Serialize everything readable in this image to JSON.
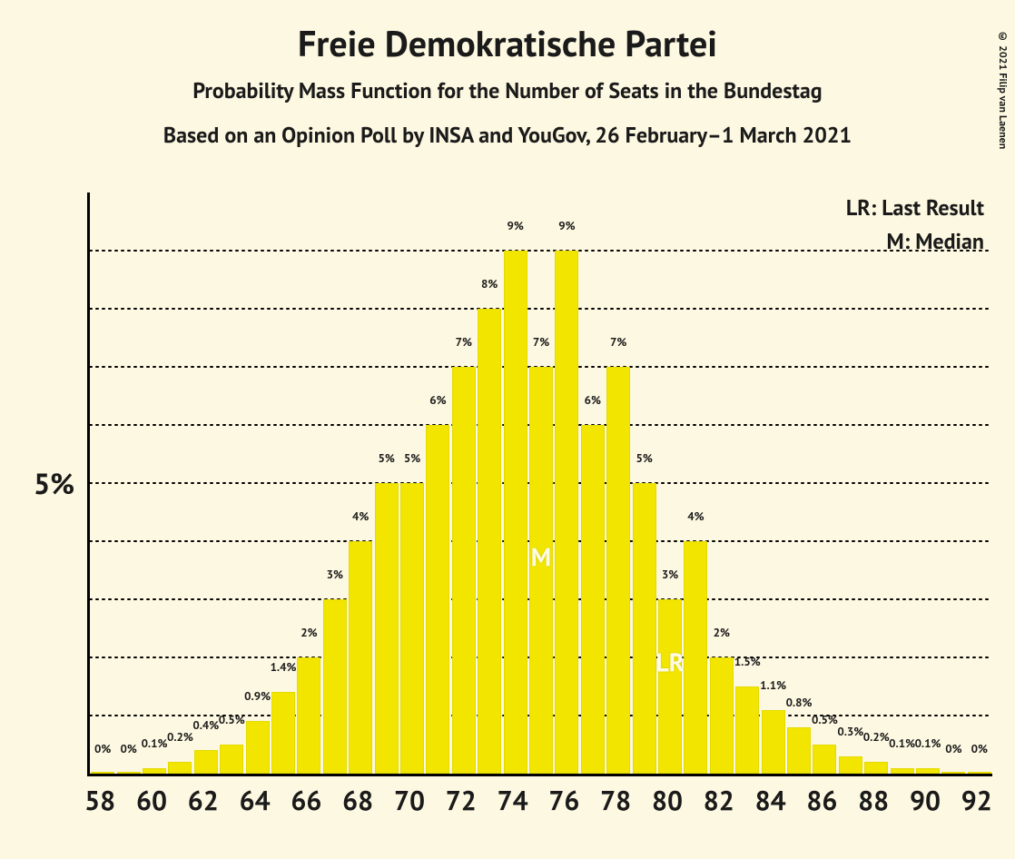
{
  "copyright": "© 2021 Filip van Laenen",
  "title": "Freie Demokratische Partei",
  "subtitle": "Probability Mass Function for the Number of Seats in the Bundestag",
  "subtitle2": "Based on an Opinion Poll by INSA and YouGov, 26 February–1 March 2021",
  "legend": {
    "lr": "LR: Last Result",
    "m": "M: Median"
  },
  "colors": {
    "background": "#fdf8e1",
    "bar": "#f2e600",
    "axis": "#000000",
    "text": "#1a1a1a",
    "marker_text": "#fffbe6"
  },
  "chart": {
    "type": "bar",
    "x_start": 58,
    "x_end": 92,
    "x_tick_labels": [
      58,
      60,
      62,
      64,
      66,
      68,
      70,
      72,
      74,
      76,
      78,
      80,
      82,
      84,
      86,
      88,
      90,
      92
    ],
    "ylim": [
      0,
      10
    ],
    "y_major_tick": 5,
    "y_tick_label": "5%",
    "gridline_style": "dotted",
    "bar_gap_ratio": 0.08,
    "title_fontsize": 40,
    "subtitle_fontsize": 24,
    "axis_label_fontsize": 30,
    "bar_label_fontsize": 13,
    "median_seat": 75,
    "last_result_seat": 80,
    "median_label": "M",
    "last_result_label": "LR",
    "bars": [
      {
        "x": 58,
        "pct": 0,
        "label": "0%"
      },
      {
        "x": 59,
        "pct": 0,
        "label": "0%"
      },
      {
        "x": 60,
        "pct": 0.1,
        "label": "0.1%"
      },
      {
        "x": 61,
        "pct": 0.2,
        "label": "0.2%"
      },
      {
        "x": 62,
        "pct": 0.4,
        "label": "0.4%"
      },
      {
        "x": 63,
        "pct": 0.5,
        "label": "0.5%"
      },
      {
        "x": 64,
        "pct": 0.9,
        "label": "0.9%"
      },
      {
        "x": 65,
        "pct": 1.4,
        "label": "1.4%"
      },
      {
        "x": 66,
        "pct": 2,
        "label": "2%"
      },
      {
        "x": 67,
        "pct": 3,
        "label": "3%"
      },
      {
        "x": 68,
        "pct": 4,
        "label": "4%"
      },
      {
        "x": 69,
        "pct": 5,
        "label": "5%"
      },
      {
        "x": 70,
        "pct": 5,
        "label": "5%"
      },
      {
        "x": 71,
        "pct": 6,
        "label": "6%"
      },
      {
        "x": 72,
        "pct": 7,
        "label": "7%"
      },
      {
        "x": 73,
        "pct": 8,
        "label": "8%"
      },
      {
        "x": 74,
        "pct": 9,
        "label": "9%"
      },
      {
        "x": 75,
        "pct": 7,
        "label": "7%"
      },
      {
        "x": 76,
        "pct": 9,
        "label": "9%"
      },
      {
        "x": 77,
        "pct": 6,
        "label": "6%"
      },
      {
        "x": 78,
        "pct": 7,
        "label": "7%"
      },
      {
        "x": 79,
        "pct": 5,
        "label": "5%"
      },
      {
        "x": 80,
        "pct": 3,
        "label": "3%"
      },
      {
        "x": 81,
        "pct": 4,
        "label": "4%"
      },
      {
        "x": 82,
        "pct": 2,
        "label": "2%"
      },
      {
        "x": 83,
        "pct": 1.5,
        "label": "1.5%"
      },
      {
        "x": 84,
        "pct": 1.1,
        "label": "1.1%"
      },
      {
        "x": 85,
        "pct": 0.8,
        "label": "0.8%"
      },
      {
        "x": 86,
        "pct": 0.5,
        "label": "0.5%"
      },
      {
        "x": 87,
        "pct": 0.3,
        "label": "0.3%"
      },
      {
        "x": 88,
        "pct": 0.2,
        "label": "0.2%"
      },
      {
        "x": 89,
        "pct": 0.1,
        "label": "0.1%"
      },
      {
        "x": 90,
        "pct": 0.1,
        "label": "0.1%"
      },
      {
        "x": 91,
        "pct": 0,
        "label": "0%"
      },
      {
        "x": 92,
        "pct": 0,
        "label": "0%"
      }
    ]
  }
}
